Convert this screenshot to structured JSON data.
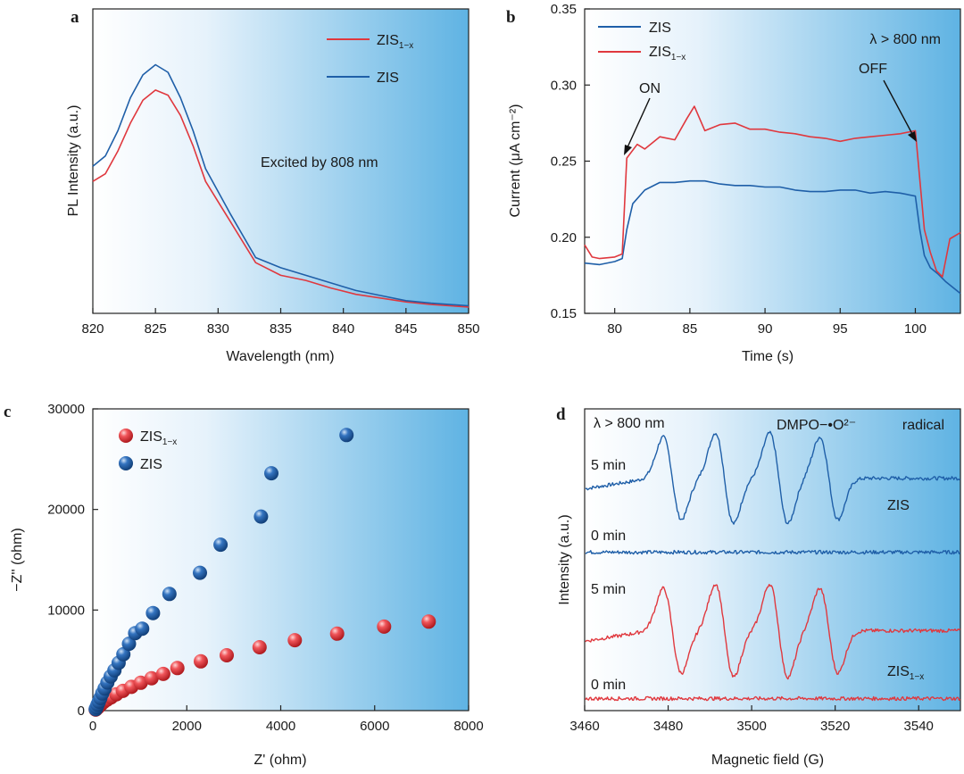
{
  "colors": {
    "zis": "#1f5fa8",
    "zis1x": "#e0383e",
    "bg_light": "#ffffff",
    "bg_dark": "#5fb3e3"
  },
  "chart_data": [
    {
      "id": "a",
      "type": "line",
      "panel_label": "a",
      "xlabel": "Wavelength (nm)",
      "ylabel": "PL Intensity (a.u.)",
      "xlim": [
        820,
        850
      ],
      "ylim": [
        0,
        1.2
      ],
      "xticks": [
        "820",
        "825",
        "830",
        "835",
        "840",
        "845",
        "850"
      ],
      "legend": [
        {
          "base": "ZIS",
          "sub": "1−x",
          "series": "ZIS1x"
        },
        {
          "base": "ZIS",
          "sub": "",
          "series": "ZIS"
        }
      ],
      "annotation": "Excited by 808 nm",
      "series": [
        {
          "name": "ZIS1x",
          "color": "#e0383e",
          "x": [
            820,
            821,
            822,
            823,
            824,
            825,
            826,
            827,
            828,
            829,
            831,
            833,
            835,
            837,
            839,
            841,
            843,
            845,
            847,
            850
          ],
          "y": [
            0.52,
            0.55,
            0.64,
            0.75,
            0.84,
            0.88,
            0.86,
            0.78,
            0.66,
            0.52,
            0.36,
            0.2,
            0.15,
            0.13,
            0.1,
            0.075,
            0.06,
            0.045,
            0.035,
            0.025
          ]
        },
        {
          "name": "ZIS",
          "color": "#1f5fa8",
          "x": [
            820,
            821,
            822,
            823,
            824,
            825,
            826,
            827,
            828,
            829,
            831,
            833,
            835,
            837,
            839,
            841,
            843,
            845,
            847,
            850
          ],
          "y": [
            0.58,
            0.62,
            0.72,
            0.85,
            0.94,
            0.98,
            0.95,
            0.85,
            0.72,
            0.57,
            0.39,
            0.22,
            0.18,
            0.15,
            0.12,
            0.09,
            0.07,
            0.05,
            0.04,
            0.03
          ]
        }
      ]
    },
    {
      "id": "b",
      "type": "line",
      "panel_label": "b",
      "xlabel": "Time (s)",
      "ylabel": "Current (μA cm⁻²)",
      "xlim": [
        78,
        103
      ],
      "ylim": [
        0.15,
        0.35
      ],
      "xticks": [
        "80",
        "85",
        "90",
        "95",
        "100"
      ],
      "yticks": [
        "0.15",
        "0.20",
        "0.25",
        "0.30",
        "0.35"
      ],
      "legend": [
        {
          "base": "ZIS",
          "sub": "",
          "series": "ZIS"
        },
        {
          "base": "ZIS",
          "sub": "1−x",
          "series": "ZIS1x"
        }
      ],
      "annotation": "λ > 800 nm",
      "on_label": "ON",
      "off_label": "OFF",
      "series": [
        {
          "name": "ZIS",
          "color": "#1f5fa8",
          "x": [
            78,
            79,
            80,
            80.5,
            80.8,
            81.2,
            82,
            83,
            84,
            85,
            86,
            87,
            88,
            89,
            90,
            91,
            92,
            93,
            94,
            95,
            96,
            97,
            98,
            99,
            100,
            100.3,
            100.6,
            101,
            101.5,
            102,
            103
          ],
          "y": [
            0.183,
            0.182,
            0.184,
            0.186,
            0.205,
            0.222,
            0.231,
            0.236,
            0.236,
            0.237,
            0.237,
            0.235,
            0.234,
            0.234,
            0.233,
            0.233,
            0.231,
            0.23,
            0.23,
            0.231,
            0.231,
            0.229,
            0.23,
            0.229,
            0.227,
            0.205,
            0.188,
            0.18,
            0.176,
            0.171,
            0.163
          ]
        },
        {
          "name": "ZIS1x",
          "color": "#e0383e",
          "x": [
            78,
            78.5,
            79,
            80,
            80.5,
            80.8,
            81.5,
            82,
            83,
            84,
            84.8,
            85.3,
            86,
            87,
            88,
            89,
            90,
            91,
            92,
            93,
            94,
            95,
            96,
            97,
            98,
            99,
            100,
            100.3,
            100.6,
            101,
            101.4,
            101.8,
            102.3,
            103
          ],
          "y": [
            0.195,
            0.187,
            0.186,
            0.187,
            0.189,
            0.252,
            0.261,
            0.258,
            0.266,
            0.264,
            0.278,
            0.286,
            0.27,
            0.274,
            0.275,
            0.271,
            0.271,
            0.269,
            0.268,
            0.266,
            0.265,
            0.263,
            0.265,
            0.266,
            0.267,
            0.268,
            0.27,
            0.238,
            0.205,
            0.19,
            0.178,
            0.174,
            0.199,
            0.203
          ]
        }
      ]
    },
    {
      "id": "c",
      "type": "scatter",
      "panel_label": "c",
      "xlabel": "Z' (ohm)",
      "ylabel": "−Z'' (ohm)",
      "xlim": [
        0,
        8000
      ],
      "ylim": [
        0,
        30000
      ],
      "xticks": [
        "0",
        "2000",
        "4000",
        "6000",
        "8000"
      ],
      "yticks": [
        "0",
        "10000",
        "20000",
        "30000"
      ],
      "legend": [
        {
          "base": "ZIS",
          "sub": "1−x",
          "series": "ZIS1x"
        },
        {
          "base": "ZIS",
          "sub": "",
          "series": "ZIS"
        }
      ],
      "series": [
        {
          "name": "ZIS1x",
          "color": "#e0383e",
          "x": [
            60,
            80,
            110,
            140,
            180,
            230,
            300,
            390,
            500,
            640,
            820,
            1020,
            1250,
            1500,
            1800,
            2300,
            2850,
            3550,
            4300,
            5200,
            6200,
            7150
          ],
          "y": [
            100,
            200,
            330,
            480,
            650,
            850,
            1070,
            1320,
            1620,
            1960,
            2360,
            2770,
            3220,
            3650,
            4230,
            4900,
            5500,
            6300,
            7000,
            7650,
            8350,
            8850
          ]
        },
        {
          "name": "ZIS",
          "color": "#1f5fa8",
          "x": [
            60,
            80,
            100,
            130,
            160,
            200,
            250,
            310,
            380,
            460,
            550,
            650,
            770,
            900,
            1050,
            1280,
            1630,
            2280,
            2720,
            3580,
            3800,
            5400
          ],
          "y": [
            150,
            350,
            600,
            900,
            1250,
            1700,
            2200,
            2800,
            3400,
            4000,
            4750,
            5600,
            6650,
            7700,
            8150,
            9700,
            11600,
            13700,
            16500,
            19300,
            23600,
            27400
          ]
        }
      ]
    },
    {
      "id": "d",
      "type": "line",
      "panel_label": "d",
      "xlabel": "Magnetic field (G)",
      "ylabel": "Intensity (a.u.)",
      "xlim": [
        3460,
        3550
      ],
      "ylim": [
        0,
        10
      ],
      "xticks": [
        "3460",
        "3480",
        "3500",
        "3520",
        "3540"
      ],
      "annotation": "λ > 800 nm",
      "species_label": "DMPO−•O²⁻",
      "radical_label": "radical",
      "sample_labels": [
        {
          "base": "ZIS",
          "sub": ""
        },
        {
          "base": "ZIS",
          "sub": "1−x"
        }
      ],
      "time_labels": [
        "5 min",
        "0 min",
        "5 min",
        "0 min"
      ],
      "line_centers": [
        3481,
        3493.5,
        3506.5,
        3518.5
      ],
      "series": [
        {
          "name": "ZIS 5 min",
          "color": "#1f5fa8",
          "baseline": 7.7,
          "amplitude": 1.8
        },
        {
          "name": "ZIS 0 min",
          "color": "#1f5fa8",
          "baseline": 5.25,
          "amplitude": 0
        },
        {
          "name": "ZIS1x 5 min",
          "color": "#e0383e",
          "baseline": 2.65,
          "amplitude": 1.85
        },
        {
          "name": "ZIS1x 0 min",
          "color": "#e0383e",
          "baseline": 0.4,
          "amplitude": 0
        }
      ]
    }
  ]
}
